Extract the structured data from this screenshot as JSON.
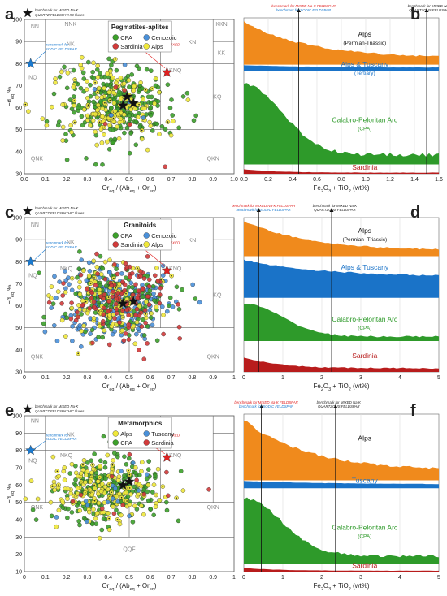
{
  "figure": {
    "x_axis_title": "Or",
    "x_axis_title_sub": "eq",
    "x_axis_title_rest": " / (Ab",
    "x_axis_title_sub2": "eq",
    "x_axis_title_rest2": " + Or",
    "x_axis_title_sub3": "eq",
    "x_axis_title_end": ")",
    "y_axis_title": "Fd",
    "y_axis_title_sub": "eq",
    "y_axis_title_end": " %",
    "bar_axis_title": "Fe",
    "bar_axis_title_sub": "2",
    "bar_axis_title_mid": "O",
    "bar_axis_title_sub2": "3",
    "bar_axis_title_mid2": " + TiO",
    "bar_axis_title_sub3": "2",
    "bar_axis_title_end": " (wt%)"
  },
  "chart_data": [
    {
      "panel": "a",
      "type": "scatter",
      "title": "Pegmatites-aplites",
      "xlim": [
        0,
        1
      ],
      "ylim": [
        30,
        100
      ],
      "xticks": [
        "0.0",
        "0.1",
        "0.2",
        "0.3",
        "0.4",
        "0.5",
        "0.6",
        "0.7",
        "0.8",
        "0.9",
        "1.0"
      ],
      "yticks": [
        "30",
        "40",
        "50",
        "60",
        "70",
        "80",
        "90",
        "100"
      ],
      "legend": [
        {
          "name": "CPA",
          "color": "#3ca02a"
        },
        {
          "name": "Cenozoic",
          "color": "#4a90d9"
        },
        {
          "name": "Sardinia",
          "color": "#d23a3a"
        },
        {
          "name": "Alps",
          "color": "#f0e83a"
        }
      ],
      "star_legend": "benchmark for MIXED Na-K QUARTZ-FELDSPATHIC fluxes",
      "fields": [
        "NN",
        "NNK",
        "KKN",
        "NK",
        "KN",
        "KK",
        "NQ",
        "NKQ",
        "KNQ",
        "KQ",
        "QNK",
        "QKN"
      ],
      "annotations": [
        {
          "text": "benchmark for SODIC FELDSPAR",
          "color": "#1a7ad0",
          "x": 0.03,
          "y": 80
        },
        {
          "text": "benchmark for MIXED Na-K FELDSPAR",
          "color": "#e02020",
          "x": 0.68,
          "y": 76
        }
      ],
      "series": [
        {
          "name": "CPA",
          "count": 260,
          "center": [
            0.45,
            62
          ]
        },
        {
          "name": "Alps",
          "count": 160,
          "center": [
            0.42,
            60
          ]
        },
        {
          "name": "Cenozoic",
          "count": 6,
          "center": [
            0.45,
            62
          ]
        },
        {
          "name": "Sardinia",
          "count": 5,
          "center": [
            0.48,
            62
          ]
        }
      ],
      "stars": [
        [
          0.47,
          61
        ],
        [
          0.52,
          62
        ],
        [
          0.49,
          65
        ]
      ]
    },
    {
      "panel": "b",
      "type": "area",
      "title_top": "benchmark for MIXED Na-K FELDSPAR",
      "title_top2": "benchmark for SODIC FELDSPAR",
      "title_right": "benchmark for MIXED Na-K QUARTZOUS FELDSPAR",
      "xlim": [
        0,
        1.6
      ],
      "xticks": [
        "0.0",
        "0.2",
        "0.4",
        "0.6",
        "0.8",
        "1.0",
        "1.2",
        "1.4",
        "1.6"
      ],
      "series": [
        {
          "name": "Alps",
          "sub": "(Permian-Triassic)",
          "color": "#f08a1c"
        },
        {
          "name": "Alps & Tuscany",
          "sub": "(Tertiary)",
          "color": "#1a73c8"
        },
        {
          "name": "Calabro-Peloritan Arc",
          "sub": "(CPA)",
          "color": "#2e9a2a"
        },
        {
          "name": "Sardinia",
          "sub": "",
          "color": "#b81c1c"
        }
      ],
      "benchmarks": [
        0.45,
        1.5
      ]
    },
    {
      "panel": "c",
      "type": "scatter",
      "title": "Granitoids",
      "xlim": [
        0,
        1
      ],
      "ylim": [
        30,
        100
      ],
      "xticks": [
        "0",
        "0.1",
        "0.2",
        "0.3",
        "0.4",
        "0.5",
        "0.6",
        "0.7",
        "0.8",
        "0.9",
        "1"
      ],
      "yticks": [
        "30",
        "40",
        "50",
        "60",
        "70",
        "80",
        "90",
        "100"
      ],
      "legend": [
        {
          "name": "CPA",
          "color": "#3ca02a"
        },
        {
          "name": "Cenozoic",
          "color": "#4a90d9"
        },
        {
          "name": "Sardinia",
          "color": "#d23a3a"
        },
        {
          "name": "Alps",
          "color": "#f0e83a"
        }
      ],
      "star_legend": "benchmark for MIXED Na-K QUARTZ-FELDSPATHIC fluxes",
      "fields": [
        "NN",
        "NK",
        "KN",
        "NQ",
        "NKQ",
        "KNQ",
        "KQ",
        "QNK",
        "QKN"
      ],
      "annotations": [
        {
          "text": "benchmark for SODIC FELDSPAR",
          "color": "#1a7ad0",
          "x": 0.03,
          "y": 80
        },
        {
          "text": "benchmark for MIXED Na-K FELDSPAR",
          "color": "#e02020",
          "x": 0.68,
          "y": 76
        }
      ],
      "series": [
        {
          "name": "Cenozoic",
          "count": 220,
          "center": [
            0.42,
            62
          ]
        },
        {
          "name": "CPA",
          "count": 150,
          "center": [
            0.44,
            62
          ]
        },
        {
          "name": "Alps",
          "count": 120,
          "center": [
            0.4,
            62
          ]
        },
        {
          "name": "Sardinia",
          "count": 120,
          "center": [
            0.47,
            62
          ]
        }
      ],
      "stars": [
        [
          0.47,
          61
        ],
        [
          0.52,
          62
        ]
      ]
    },
    {
      "panel": "d",
      "type": "area",
      "title_top": "benchmark for MIXED Na-K FELDSPAR",
      "title_top2": "benchmark for SODIC FELDSPAR",
      "title_right": "benchmark for MIXED Na-K QUARTZOUS FELDSPAR",
      "xlim": [
        0,
        5
      ],
      "xticks": [
        "0",
        "1",
        "2",
        "3",
        "4",
        "5"
      ],
      "series": [
        {
          "name": "Alps",
          "sub": "(Permian -Triassic)",
          "color": "#f08a1c"
        },
        {
          "name": "Alps & Tuscany",
          "sub": "(Tertiary)",
          "color": "#1a73c8"
        },
        {
          "name": "Calabro-Peloritan Arc",
          "sub": "(CPA)",
          "color": "#2e9a2a"
        },
        {
          "name": "Sardinia",
          "sub": "",
          "color": "#b81c1c"
        }
      ],
      "benchmarks": [
        0.38,
        2.25
      ]
    },
    {
      "panel": "e",
      "type": "scatter",
      "title": "Metamorphics",
      "xlim": [
        0,
        1
      ],
      "ylim": [
        10,
        100
      ],
      "xticks": [
        "0",
        "0.1",
        "0.2",
        "0.3",
        "0.4",
        "0.5",
        "0.6",
        "0.7",
        "0.8",
        "0.9",
        "1"
      ],
      "yticks": [
        "10",
        "20",
        "30",
        "40",
        "50",
        "60",
        "70",
        "80",
        "90",
        "100"
      ],
      "legend": [
        {
          "name": "Alps",
          "color": "#f0e83a"
        },
        {
          "name": "Tuscany",
          "color": "#4a90d9"
        },
        {
          "name": "CPA",
          "color": "#3ca02a"
        },
        {
          "name": "Sardinia",
          "color": "#d23a3a"
        }
      ],
      "star_legend": "benchmark for MIXED Na-K QUARTZ-FELDSPATHIC fluxes",
      "fields": [
        "NN",
        "NK",
        "NQ",
        "NKQ",
        "KNQ",
        "QNK",
        "QKN",
        "QQF"
      ],
      "annotations": [
        {
          "text": "benchmark for SODIC FELDSPAR",
          "color": "#1a7ad0",
          "x": 0.03,
          "y": 80
        },
        {
          "text": "benchmark for MIXED Na-K FELDSPAR",
          "color": "#e02020",
          "x": 0.68,
          "y": 76
        }
      ],
      "series": [
        {
          "name": "CPA",
          "count": 230,
          "center": [
            0.4,
            58
          ]
        },
        {
          "name": "Alps",
          "count": 170,
          "center": [
            0.38,
            56
          ]
        },
        {
          "name": "Tuscany",
          "count": 14,
          "center": [
            0.45,
            55
          ]
        },
        {
          "name": "Sardinia",
          "count": 12,
          "center": [
            0.5,
            58
          ]
        }
      ],
      "stars": [
        [
          0.47,
          60
        ],
        [
          0.5,
          62
        ]
      ]
    },
    {
      "panel": "f",
      "type": "area",
      "title_top": "benchmark for MIXED Na-K FELDSPAR",
      "title_top2": "benchmark for SODIC FELDSPAR",
      "title_right": "benchmark for MIXED Na-K QUARTZOUS FELDSPAR",
      "xlim": [
        0,
        5
      ],
      "xticks": [
        "0",
        "1",
        "2",
        "3",
        "4",
        "5"
      ],
      "series": [
        {
          "name": "Alps",
          "sub": "",
          "color": "#f08a1c"
        },
        {
          "name": "Tuscany",
          "sub": "",
          "color": "#1a73c8"
        },
        {
          "name": "Calabro-Peloritan Arc",
          "sub": "(CPA)",
          "color": "#2e9a2a"
        },
        {
          "name": "Sardinia",
          "sub": "",
          "color": "#b81c1c"
        }
      ],
      "benchmarks": [
        0.45,
        2.35
      ]
    }
  ]
}
